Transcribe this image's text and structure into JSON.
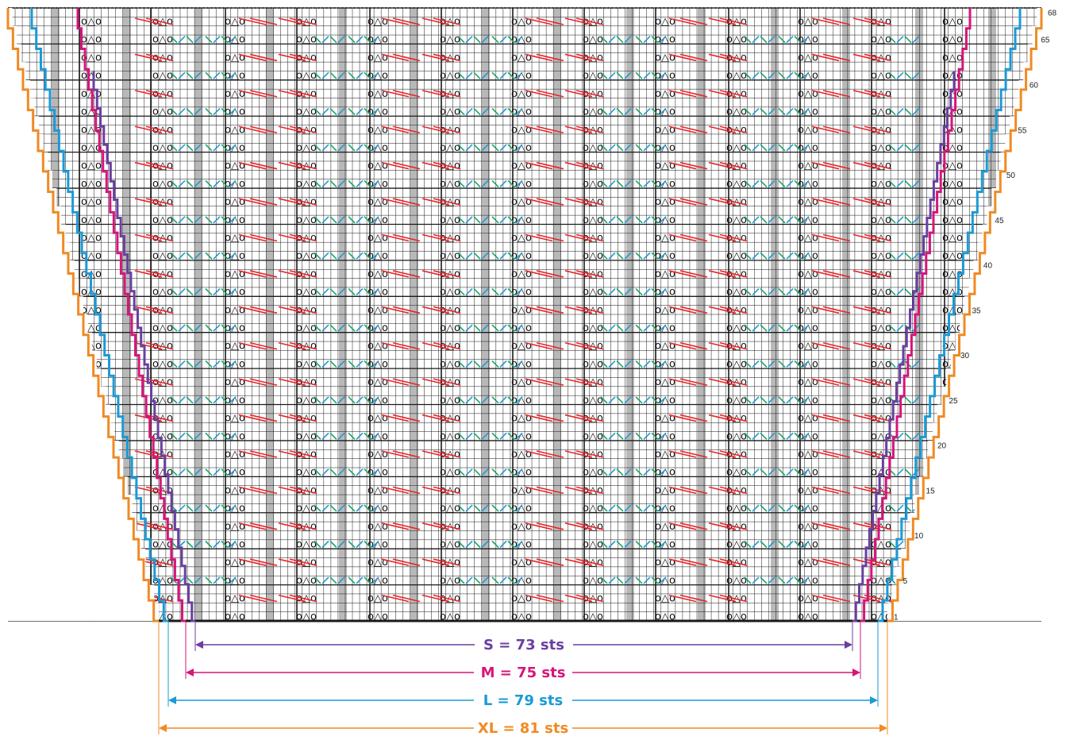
{
  "chart": {
    "rows": 68,
    "row_labels": [
      "68",
      "65",
      "60",
      "55",
      "50",
      "45",
      "40",
      "35",
      "30",
      "25",
      "20",
      "15",
      "10",
      "5",
      "1"
    ],
    "lace_motif": "o△o",
    "colors": {
      "S": "#6a3fa0",
      "M": "#d6157a",
      "L": "#1b9ad6",
      "XL": "#f08a24",
      "red_decrease": "#e8262c",
      "blue_stitch": "#1b9ad6",
      "green_stitch": "#1aa36a",
      "no_stitch": "#b8b8b8",
      "grid": "#1a1a1a"
    }
  },
  "sizes": [
    {
      "key": "S",
      "label": "S = 73 sts",
      "color": "#6a3fa0"
    },
    {
      "key": "M",
      "label": "M = 75 sts",
      "color": "#d6157a"
    },
    {
      "key": "L",
      "label": "L = 79 sts",
      "color": "#1b9ad6"
    },
    {
      "key": "XL",
      "label": "XL = 81 sts",
      "color": "#f08a24"
    }
  ]
}
